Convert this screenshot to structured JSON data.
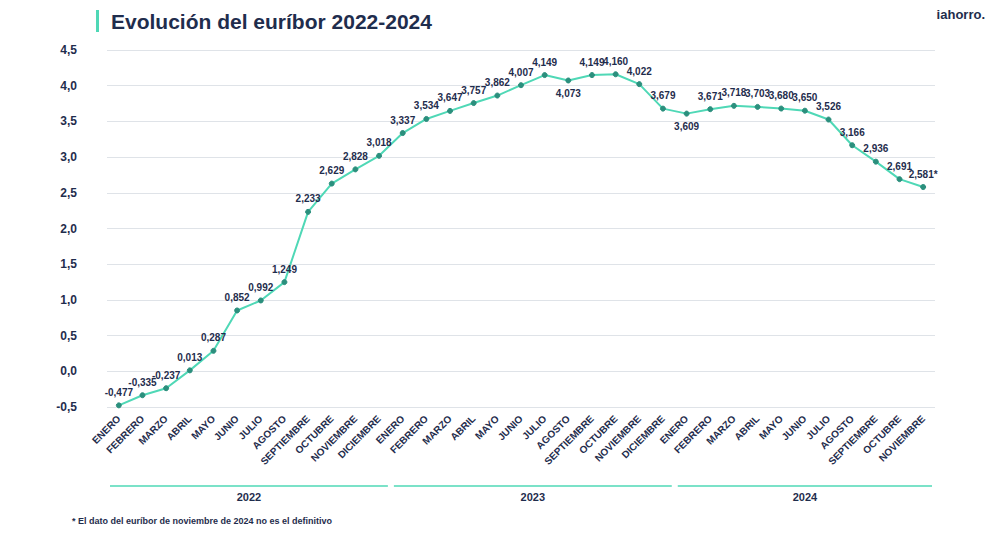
{
  "chart_data": {
    "type": "line",
    "title": "Evolución del euríbor 2022-2024",
    "logo": "iahorro.",
    "footnote": "* El dato del euríbor de noviembre de 2024 no es el definitivo",
    "categories": [
      "ENERO",
      "FEBRERO",
      "MARZO",
      "ABRIL",
      "MAYO",
      "JUNIO",
      "JULIO",
      "AGOSTO",
      "SEPTIEMBRE",
      "OCTUBRE",
      "NOVIEMBRE",
      "DICIEMBRE",
      "ENERO",
      "FEBRERO",
      "MARZO",
      "ABRIL",
      "MAYO",
      "JUNIO",
      "JULIO",
      "AGOSTO",
      "SEPTIEMBRE",
      "OCTUBRE",
      "NOVIEMBRE",
      "DICIEMBRE",
      "ENERO",
      "FEBRERO",
      "MARZO",
      "ABRIL",
      "MAYO",
      "JUNIO",
      "JULIO",
      "AGOSTO",
      "SEPTIEMBRE",
      "OCTUBRE",
      "NOVIEMBRE"
    ],
    "values": [
      -0.477,
      -0.335,
      -0.237,
      0.013,
      0.287,
      0.852,
      0.992,
      1.249,
      2.233,
      2.629,
      2.828,
      3.018,
      3.337,
      3.534,
      3.647,
      3.757,
      3.862,
      4.007,
      4.149,
      4.073,
      4.149,
      4.16,
      4.022,
      3.679,
      3.609,
      3.671,
      3.718,
      3.703,
      3.68,
      3.65,
      3.526,
      3.166,
      2.936,
      2.691,
      2.581
    ],
    "value_labels": [
      "-0,477",
      "-0,335",
      "-0,237",
      "0,013",
      "0,287",
      "0,852",
      "0,992",
      "1,249",
      "2,233",
      "2,629",
      "2,828",
      "3,018",
      "3,337",
      "3,534",
      "3,647",
      "3,757",
      "3,862",
      "4,007",
      "4,149",
      "4,073",
      "4,149",
      "4,160",
      "4,022",
      "3,679",
      "3,609",
      "3,671",
      "3,718",
      "3,703",
      "3,680",
      "3,650",
      "3,526",
      "3,166",
      "2,936",
      "2,691",
      "2,581*"
    ],
    "year_groups": [
      {
        "label": "2022",
        "months": 12
      },
      {
        "label": "2023",
        "months": 12
      },
      {
        "label": "2024",
        "months": 11
      }
    ],
    "color": "#4fd8b6",
    "marker": "circle",
    "data_labels": true,
    "grid": true,
    "ylim": [
      -0.5,
      4.5
    ],
    "yticks": [
      {
        "value": -0.5,
        "label": "-0,5"
      },
      {
        "value": 0,
        "label": "0,0"
      },
      {
        "value": 0.5,
        "label": "0,5"
      },
      {
        "value": 1,
        "label": "1,0"
      },
      {
        "value": 1.5,
        "label": "1,5"
      },
      {
        "value": 2,
        "label": "2,0"
      },
      {
        "value": 2.5,
        "label": "2,5"
      },
      {
        "value": 3,
        "label": "3,0"
      },
      {
        "value": 3.5,
        "label": "3,5"
      },
      {
        "value": 4,
        "label": "4,0"
      },
      {
        "value": 4.5,
        "label": "4,5"
      }
    ]
  }
}
